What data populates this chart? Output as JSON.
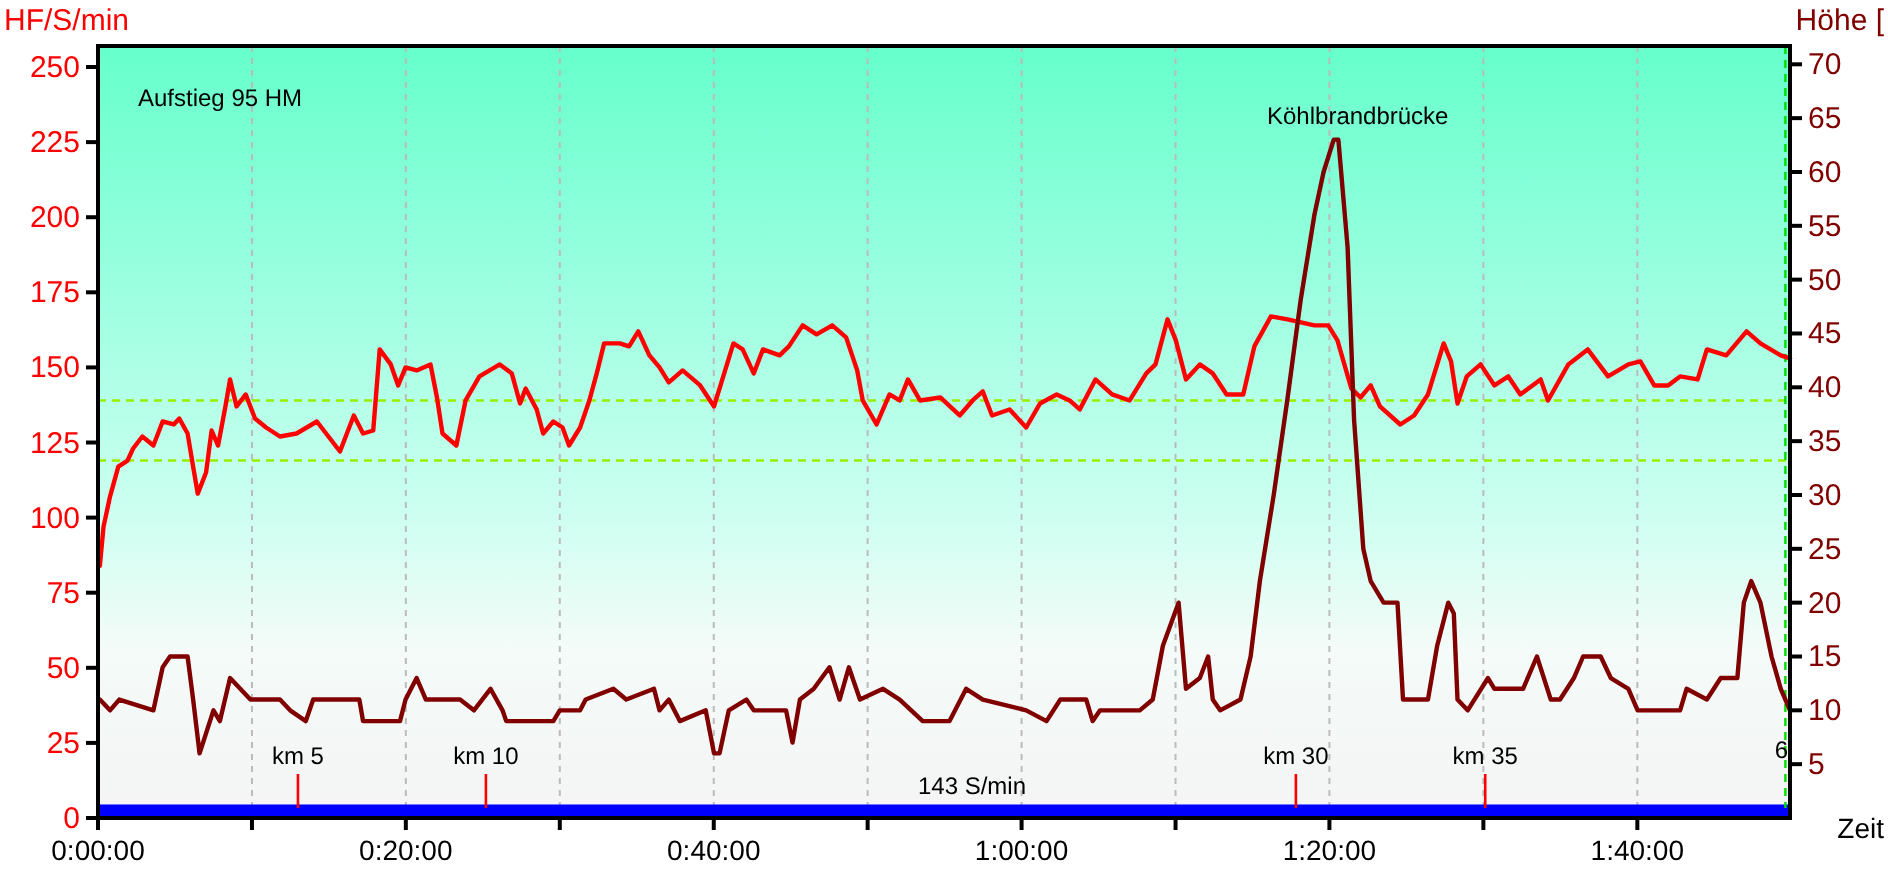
{
  "chart_data": {
    "type": "line",
    "xlabel": "Zeit",
    "ylabel": "HF/S/min",
    "y2label": "Höhe [",
    "annotations": [
      "Aufstieg 95 HM",
      "Köhlbrandbrücke",
      "6"
    ],
    "xlim": [
      0,
      1.832
    ],
    "ylim": [
      0,
      257
    ],
    "y2lim": [
      0,
      71.7
    ],
    "xticks": [
      {
        "value": 0,
        "label": "0:00:00"
      },
      {
        "value": 0.1667,
        "label": null
      },
      {
        "value": 0.3333,
        "label": "0:20:00"
      },
      {
        "value": 0.5,
        "label": null
      },
      {
        "value": 0.6667,
        "label": "0:40:00"
      },
      {
        "value": 0.8333,
        "label": null
      },
      {
        "value": 1,
        "label": "1:00:00"
      },
      {
        "value": 1.1667,
        "label": null
      },
      {
        "value": 1.3333,
        "label": "1:20:00"
      },
      {
        "value": 1.5,
        "label": null
      },
      {
        "value": 1.6667,
        "label": "1:40:00"
      }
    ],
    "yticks": [
      0,
      25,
      50,
      75,
      100,
      125,
      150,
      175,
      200,
      225,
      250
    ],
    "y2ticks": [
      5,
      10,
      15,
      20,
      25,
      30,
      35,
      40,
      45,
      50,
      55,
      60,
      65,
      70
    ],
    "grid": "x",
    "series": [
      {
        "color": "#ff0000",
        "x": [
          0.002,
          0.006,
          0.013,
          0.022,
          0.032,
          0.038,
          0.048,
          0.06,
          0.07,
          0.082,
          0.088,
          0.097,
          0.103,
          0.108,
          0.117,
          0.123,
          0.13,
          0.138,
          0.143,
          0.15,
          0.16,
          0.17,
          0.182,
          0.197,
          0.215,
          0.237,
          0.247,
          0.262,
          0.277,
          0.287,
          0.298,
          0.305,
          0.317,
          0.325,
          0.333,
          0.345,
          0.36,
          0.367,
          0.373,
          0.388,
          0.398,
          0.413,
          0.435,
          0.448,
          0.457,
          0.463,
          0.475,
          0.482,
          0.493,
          0.503,
          0.51,
          0.522,
          0.532,
          0.54,
          0.548,
          0.565,
          0.575,
          0.585,
          0.597,
          0.608,
          0.618,
          0.633,
          0.652,
          0.667,
          0.678,
          0.688,
          0.698,
          0.71,
          0.72,
          0.738,
          0.748,
          0.763,
          0.778,
          0.795,
          0.81,
          0.822,
          0.828,
          0.843,
          0.857,
          0.868,
          0.877,
          0.89,
          0.912,
          0.933,
          0.947,
          0.958,
          0.968,
          0.987,
          1.005,
          1.02,
          1.038,
          1.052,
          1.063,
          1.08,
          1.098,
          1.117,
          1.135,
          1.145,
          1.158,
          1.167,
          1.178,
          1.193,
          1.207,
          1.222,
          1.24,
          1.252,
          1.27,
          1.288,
          1.317,
          1.332,
          1.342,
          1.357,
          1.367,
          1.378,
          1.388,
          1.41,
          1.425,
          1.44,
          1.45,
          1.457,
          1.465,
          1.472,
          1.482,
          1.497,
          1.512,
          1.527,
          1.54,
          1.562,
          1.57,
          1.592,
          1.613,
          1.635,
          1.657,
          1.67,
          1.685,
          1.7,
          1.713,
          1.732,
          1.742,
          1.763,
          1.785,
          1.8,
          1.822,
          1.832
        ],
        "values": [
          84,
          97,
          107,
          117,
          119,
          123,
          127,
          124,
          132,
          131,
          133,
          128,
          117,
          108,
          115,
          129,
          124,
          137,
          146,
          137,
          141,
          133,
          130,
          127,
          128,
          132,
          128,
          122,
          134,
          128,
          129,
          156,
          151,
          144,
          150,
          149,
          151,
          140,
          128,
          124,
          139,
          147,
          151,
          148,
          138,
          143,
          136,
          128,
          132,
          130,
          124,
          130,
          139,
          148,
          158,
          158,
          157,
          162,
          154,
          150,
          145,
          149,
          144,
          137,
          148,
          158,
          156,
          148,
          156,
          154,
          157,
          164,
          161,
          164,
          160,
          149,
          139,
          131,
          141,
          139,
          146,
          139,
          140,
          134,
          139,
          142,
          134,
          136,
          130,
          138,
          141,
          139,
          136,
          146,
          141,
          139,
          148,
          151,
          166,
          159,
          146,
          151,
          148,
          141,
          141,
          157,
          167,
          166,
          164,
          164,
          159,
          143,
          140,
          144,
          137,
          131,
          134,
          141,
          151,
          158,
          152,
          138,
          147,
          151,
          144,
          147,
          141,
          146,
          139,
          151,
          156,
          147,
          151,
          152,
          144,
          144,
          147,
          146,
          156,
          154,
          162,
          158,
          154,
          153
        ]
      },
      {
        "color": "#800000",
        "axis": "y2",
        "x": [
          0.002,
          0.013,
          0.023,
          0.06,
          0.07,
          0.078,
          0.097,
          0.103,
          0.11,
          0.125,
          0.132,
          0.143,
          0.165,
          0.197,
          0.208,
          0.225,
          0.233,
          0.283,
          0.287,
          0.327,
          0.333,
          0.345,
          0.355,
          0.392,
          0.407,
          0.425,
          0.438,
          0.442,
          0.493,
          0.5,
          0.522,
          0.528,
          0.558,
          0.572,
          0.602,
          0.608,
          0.618,
          0.63,
          0.658,
          0.667,
          0.673,
          0.683,
          0.702,
          0.71,
          0.745,
          0.752,
          0.76,
          0.775,
          0.792,
          0.803,
          0.813,
          0.825,
          0.85,
          0.868,
          0.893,
          0.922,
          0.94,
          0.958,
          1.005,
          1.027,
          1.042,
          1.07,
          1.077,
          1.085,
          1.128,
          1.142,
          1.153,
          1.17,
          1.178,
          1.193,
          1.202,
          1.207,
          1.215,
          1.237,
          1.248,
          1.258,
          1.273,
          1.288,
          1.302,
          1.317,
          1.327,
          1.338,
          1.343,
          1.353,
          1.36,
          1.37,
          1.378,
          1.392,
          1.407,
          1.413,
          1.44,
          1.45,
          1.462,
          1.468,
          1.472,
          1.483,
          1.505,
          1.512,
          1.543,
          1.558,
          1.573,
          1.583,
          1.598,
          1.608,
          1.627,
          1.638,
          1.657,
          1.667,
          1.713,
          1.72,
          1.742,
          1.757,
          1.775,
          1.782,
          1.79,
          1.8,
          1.812,
          1.822,
          1.832
        ],
        "values": [
          11,
          10,
          11,
          10,
          14,
          15,
          15,
          11,
          6,
          10,
          9,
          13,
          11,
          11,
          10,
          9,
          11,
          11,
          9,
          9,
          11,
          13,
          11,
          11,
          10,
          12,
          10,
          9,
          9,
          10,
          10,
          11,
          12,
          11,
          12,
          10,
          11,
          9,
          10,
          6,
          6,
          10,
          11,
          10,
          10,
          7,
          11,
          12,
          14,
          11,
          14,
          11,
          12,
          11,
          9,
          9,
          12,
          11,
          10,
          9,
          11,
          11,
          9,
          10,
          10,
          11,
          16,
          20,
          12,
          13,
          15,
          11,
          10,
          11,
          15,
          22,
          30,
          39,
          48,
          56,
          60,
          63,
          63,
          53,
          37,
          25,
          22,
          20,
          20,
          11,
          11,
          16,
          20,
          19,
          11,
          10,
          13,
          12,
          12,
          15,
          11,
          11,
          13,
          15,
          15,
          13,
          12,
          10,
          10,
          12,
          11,
          13,
          13,
          20,
          22,
          20,
          15,
          12,
          10
        ]
      }
    ],
    "ref_lines": [
      {
        "axis": "y",
        "value": 139,
        "color": "#99ee00",
        "line_style": "dashed"
      },
      {
        "axis": "y",
        "value": 119,
        "color": "#99ee00",
        "line_style": "dashed"
      },
      {
        "axis": "x",
        "value": 0.2165,
        "label": "km 5",
        "color": "#ff0000",
        "line_style": "solid"
      },
      {
        "axis": "x",
        "value": 0.42,
        "label": "km 10",
        "color": "#ff0000",
        "line_style": "solid"
      },
      {
        "axis": "x",
        "value": 1.297,
        "label": "km 30",
        "color": "#ff0000",
        "line_style": "solid"
      },
      {
        "axis": "x",
        "value": 1.502,
        "label": "km 35",
        "color": "#ff0000",
        "line_style": "solid"
      },
      {
        "axis": "x",
        "value": 1.827,
        "color": "#00dd00",
        "line_style": "dashed"
      }
    ],
    "bands": [
      {
        "axis": "y",
        "from": 0,
        "to": 4.5,
        "label": "143 S/min",
        "color": "#0000ff"
      }
    ]
  }
}
